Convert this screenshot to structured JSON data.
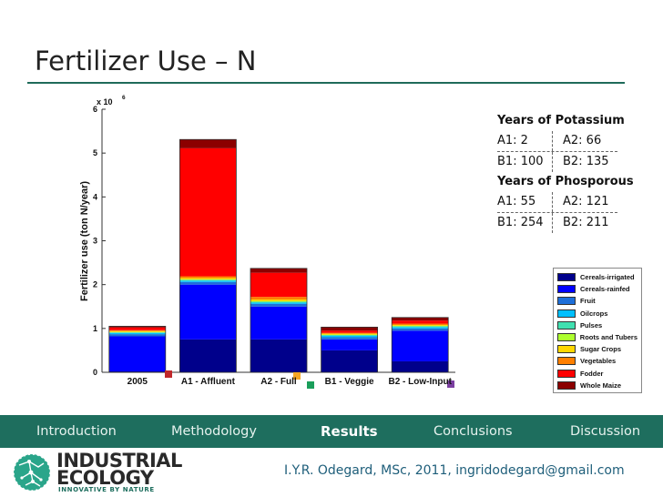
{
  "slide": {
    "title": "Fertilizer Use – N"
  },
  "info_box": {
    "potassium_title": "Years of Potassium",
    "potassium_rows": [
      [
        "A1: 2",
        "A2: 66"
      ],
      [
        "B1: 100",
        "B2: 135"
      ]
    ],
    "phosphorous_title": "Years of Phosporous",
    "phosphorous_rows": [
      [
        "A1: 55",
        "A2: 121"
      ],
      [
        "B1: 254",
        "B2: 211"
      ]
    ]
  },
  "nav": {
    "items": [
      "Introduction",
      "Methodology",
      "Results",
      "Conclusions",
      "Discussion"
    ],
    "active": "Results"
  },
  "footer": {
    "logo_line1": "INDUSTRIAL",
    "logo_line2": "ECOLOGY",
    "logo_tagline": "INNOVATIVE BY NATURE",
    "credit": "I.Y.R. Odegard, MSc, 2011, ingridodegard@gmail.com"
  },
  "marker_colors": [
    "#c0282b",
    "#f5a623",
    "#1a9e5a",
    "#7b3fa0"
  ],
  "chart_data": {
    "type": "bar",
    "stacked": true,
    "ylabel": "Fertilizer use (ton N/year)",
    "y_multiplier_label": "x 10",
    "y_multiplier_exp": "6",
    "ylim": [
      0,
      6
    ],
    "yticks": [
      "0",
      "1",
      "2",
      "3",
      "4",
      "5",
      "6"
    ],
    "categories": [
      "2005",
      "A1 - Affluent",
      "A2 - Full",
      "B1 - Veggie",
      "B2 - Low-Input"
    ],
    "series": [
      {
        "name": "Cereals-irrigated",
        "color": "#00008b",
        "values": [
          0.02,
          0.75,
          0.75,
          0.5,
          0.25
        ]
      },
      {
        "name": "Cereals-rainfed",
        "color": "#0000ff",
        "values": [
          0.8,
          1.25,
          0.75,
          0.25,
          0.7
        ]
      },
      {
        "name": "Fruit",
        "color": "#1e6fd9",
        "values": [
          0.05,
          0.06,
          0.06,
          0.05,
          0.05
        ]
      },
      {
        "name": "Oilcrops",
        "color": "#00bfff",
        "values": [
          0.03,
          0.03,
          0.03,
          0.03,
          0.03
        ]
      },
      {
        "name": "Pulses",
        "color": "#40e0b0",
        "values": [
          0.01,
          0.02,
          0.02,
          0.02,
          0.02
        ]
      },
      {
        "name": "Roots and Tubers",
        "color": "#adff2f",
        "values": [
          0.01,
          0.01,
          0.01,
          0.01,
          0.01
        ]
      },
      {
        "name": "Sugar Crops",
        "color": "#ffd700",
        "values": [
          0.02,
          0.03,
          0.04,
          0.02,
          0.02
        ]
      },
      {
        "name": "Vegetables",
        "color": "#ff7f00",
        "values": [
          0.02,
          0.04,
          0.06,
          0.02,
          0.03
        ]
      },
      {
        "name": "Fodder",
        "color": "#ff0000",
        "values": [
          0.06,
          2.92,
          0.55,
          0.05,
          0.07
        ]
      },
      {
        "name": "Whole Maize",
        "color": "#8b0000",
        "values": [
          0.03,
          0.2,
          0.1,
          0.08,
          0.07
        ]
      }
    ]
  }
}
